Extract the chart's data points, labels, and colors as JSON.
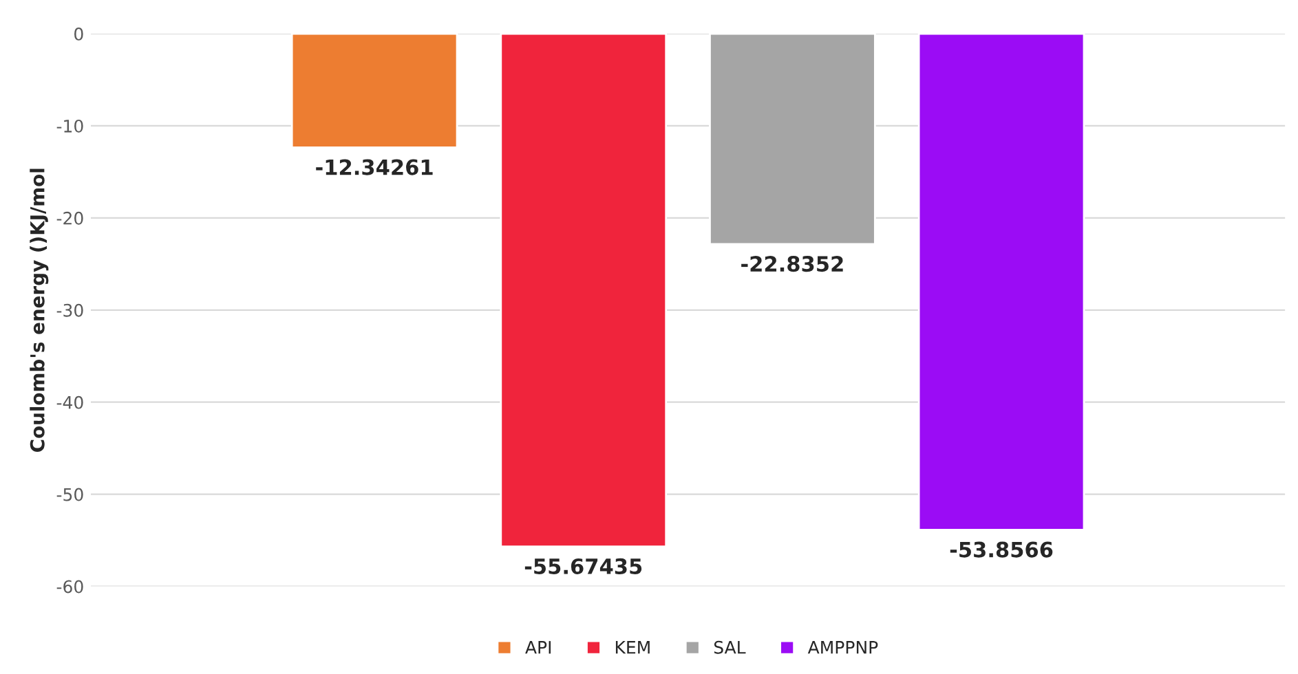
{
  "chart_data": {
    "type": "bar",
    "ylabel": "Coulomb's energy ()KJ/mol",
    "categories": [
      null
    ],
    "series": [
      {
        "name": "API",
        "color": "#ed7d31",
        "values": [
          -12.34261
        ]
      },
      {
        "name": "KEM",
        "color": "#f0243c",
        "values": [
          -55.67435
        ]
      },
      {
        "name": "SAL",
        "color": "#a5a5a5",
        "values": [
          -22.8352
        ]
      },
      {
        "name": "AMPPNP",
        "color": "#9b0cf5",
        "values": [
          -53.8566
        ]
      }
    ],
    "ylim": [
      -60,
      0
    ],
    "yticks": [
      0,
      -10,
      -20,
      -30,
      -40,
      -50,
      -60
    ],
    "grid": "y",
    "legend": "bottom",
    "data_labels": true
  }
}
